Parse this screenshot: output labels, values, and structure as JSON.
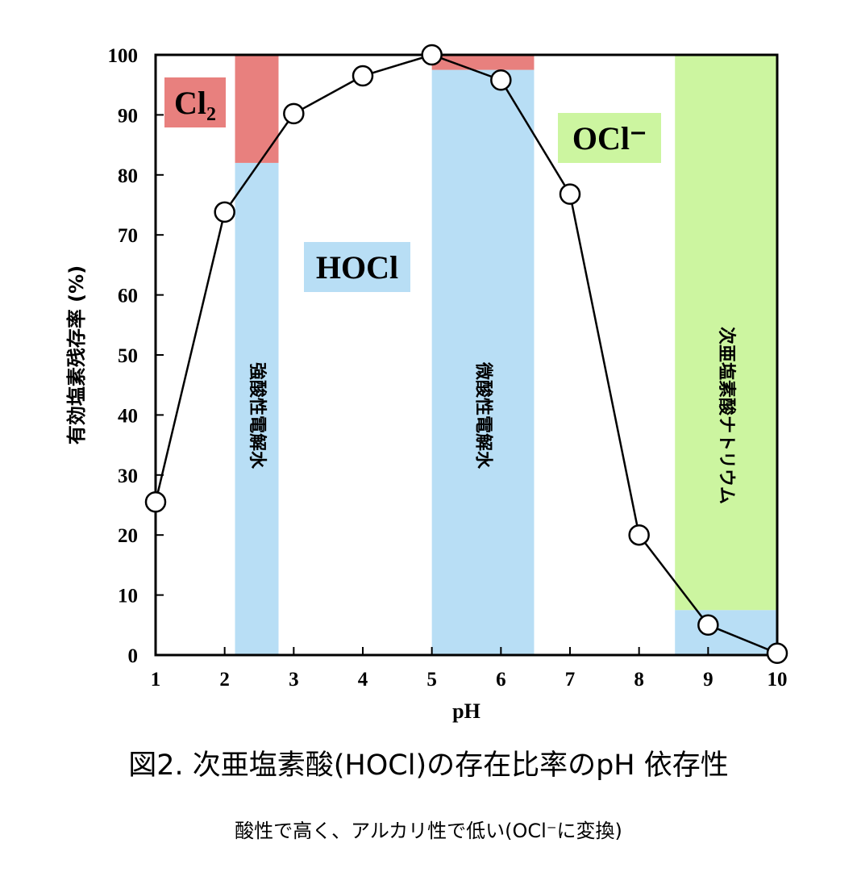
{
  "chart_data": {
    "type": "line",
    "xlabel": "pH",
    "ylabel": "有効塩素残存率 (%)",
    "xlim": [
      1,
      10
    ],
    "ylim": [
      0,
      100
    ],
    "x_ticks": [
      1,
      2,
      3,
      4,
      5,
      6,
      7,
      8,
      9,
      10
    ],
    "y_ticks": [
      0,
      10,
      20,
      30,
      40,
      50,
      60,
      70,
      80,
      90,
      100
    ],
    "x": [
      1,
      2,
      3,
      4,
      5,
      6,
      7,
      8,
      9,
      10
    ],
    "series": [
      {
        "values": [
          25.5,
          73.8,
          90.2,
          96.5,
          100,
          95.8,
          76.8,
          20,
          5,
          0.3
        ]
      }
    ],
    "species_labels": [
      {
        "text": "Cl₂",
        "color": "#e8807e"
      },
      {
        "text": "HOCl",
        "color": "#b8def5"
      },
      {
        "text": "OCl⁻",
        "color": "#ccf5a0"
      }
    ],
    "bands": [
      {
        "label": "強酸性電解水",
        "x_range": [
          2.15,
          2.78
        ],
        "split_at": 82,
        "lower_color": "#b8def5",
        "upper_color": "#e8807e"
      },
      {
        "label": "微酸性電解水",
        "x_range": [
          5.0,
          6.48
        ],
        "split_at": 97.5,
        "lower_color": "#b8def5",
        "upper_color": "#e8807e"
      },
      {
        "label": "次亜塩素酸ナトリウム",
        "x_range": [
          8.52,
          10.0
        ],
        "split_at": 7.5,
        "lower_color": "#b8def5",
        "upper_color": "#ccf5a0"
      }
    ],
    "grid": false,
    "legend": "none"
  },
  "caption": {
    "title": "図2. 次亜塩素酸(HOCl)の存在比率のpH 依存性",
    "subtitle": "酸性で高く、アルカリ性で低い(OCl⁻に変換)"
  }
}
